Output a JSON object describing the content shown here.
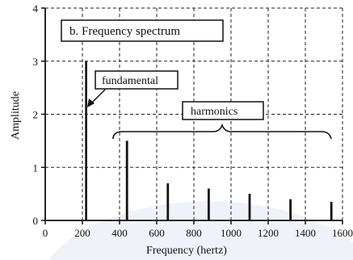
{
  "chart_data": {
    "type": "bar",
    "title": "b.  Frequency spectrum",
    "xlabel": "Frequency (hertz)",
    "ylabel": "Amplitude",
    "xlim": [
      0,
      1600
    ],
    "ylim": [
      0,
      4
    ],
    "x_ticks": [
      0,
      200,
      400,
      600,
      800,
      1000,
      1200,
      1400,
      1600
    ],
    "y_ticks": [
      0,
      1,
      2,
      3,
      4
    ],
    "grid": true,
    "series": [
      {
        "x": [
          220,
          440,
          660,
          880,
          1100,
          1320,
          1540
        ],
        "values": [
          3.0,
          1.5,
          0.7,
          0.6,
          0.5,
          0.4,
          0.35
        ]
      }
    ],
    "annotations": {
      "fundamental": "fundamental",
      "harmonics": "harmonics"
    }
  }
}
